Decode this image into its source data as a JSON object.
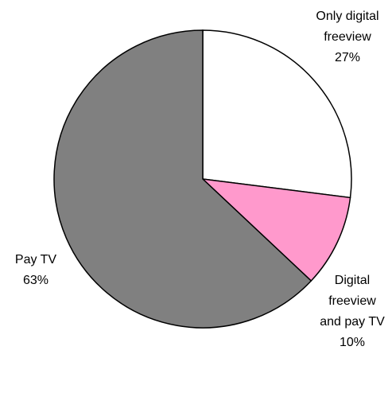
{
  "chart_data": {
    "type": "pie",
    "categories": [
      "Only digital freeview",
      "Digital freeview and pay TV",
      "Pay TV"
    ],
    "values": [
      27,
      10,
      63
    ],
    "value_labels": [
      "27%",
      "10%",
      "63%"
    ],
    "colors": [
      "#ffffff",
      "#ff99cc",
      "#808080"
    ]
  }
}
